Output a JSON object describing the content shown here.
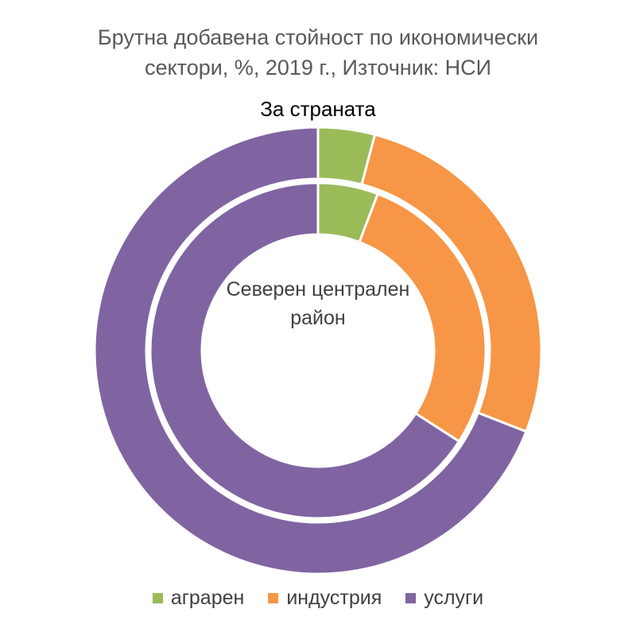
{
  "chart_data": {
    "type": "donut",
    "title_lines": [
      "Брутна добавена стойност по икономически",
      "сектори, %, 2019 г., Източник: НСИ"
    ],
    "categories": [
      "аграрен",
      "индустрия",
      "услуги"
    ],
    "colors": [
      "#9bbb59",
      "#f79646",
      "#8064a2"
    ],
    "series": [
      {
        "name": "За страната",
        "ring": "outer",
        "values": [
          4.1,
          26.8,
          69.1
        ]
      },
      {
        "name_lines": [
          "Северен централен",
          "район"
        ],
        "ring": "inner",
        "values": [
          5.8,
          28.3,
          65.9
        ]
      }
    ],
    "legend_position": "bottom"
  }
}
